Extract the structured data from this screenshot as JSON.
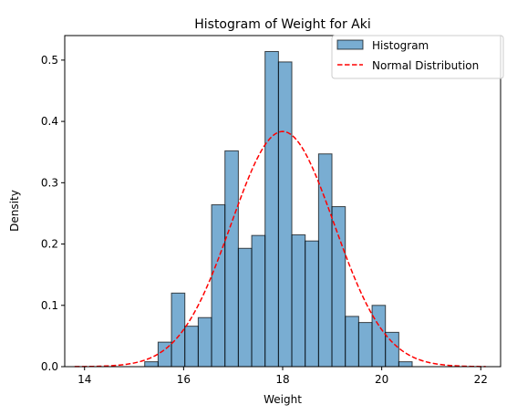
{
  "chart_data": {
    "type": "bar",
    "title": "Histogram of Weight for Aki",
    "xlabel": "Weight",
    "ylabel": "Density",
    "xlim": [
      13.6,
      22.4
    ],
    "ylim": [
      0,
      0.54
    ],
    "xticks": [
      14,
      16,
      18,
      20,
      22
    ],
    "yticks": [
      0.0,
      0.1,
      0.2,
      0.3,
      0.4,
      0.5
    ],
    "grid": false,
    "legend_position": "top-right",
    "bin_width": 0.27,
    "histogram": {
      "name": "Histogram",
      "color": "#1f77b4",
      "opacity": 0.6,
      "edge_color": "#000000",
      "bins": [
        {
          "x": 15.35,
          "value": 0.008
        },
        {
          "x": 15.62,
          "value": 0.04
        },
        {
          "x": 15.89,
          "value": 0.12
        },
        {
          "x": 16.16,
          "value": 0.066
        },
        {
          "x": 16.43,
          "value": 0.08
        },
        {
          "x": 16.7,
          "value": 0.264
        },
        {
          "x": 16.97,
          "value": 0.352
        },
        {
          "x": 17.24,
          "value": 0.193
        },
        {
          "x": 17.51,
          "value": 0.214
        },
        {
          "x": 17.78,
          "value": 0.514
        },
        {
          "x": 18.05,
          "value": 0.497
        },
        {
          "x": 18.32,
          "value": 0.215
        },
        {
          "x": 18.59,
          "value": 0.205
        },
        {
          "x": 18.86,
          "value": 0.347
        },
        {
          "x": 19.13,
          "value": 0.261
        },
        {
          "x": 19.4,
          "value": 0.082
        },
        {
          "x": 19.67,
          "value": 0.072
        },
        {
          "x": 19.94,
          "value": 0.1
        },
        {
          "x": 20.21,
          "value": 0.056
        },
        {
          "x": 20.48,
          "value": 0.008
        }
      ]
    },
    "normal_curve": {
      "name": "Normal Distribution",
      "color": "#ff0000",
      "style": "dashed",
      "mean": 18.0,
      "std": 1.04,
      "x_range": [
        13.8,
        22.1
      ]
    }
  }
}
